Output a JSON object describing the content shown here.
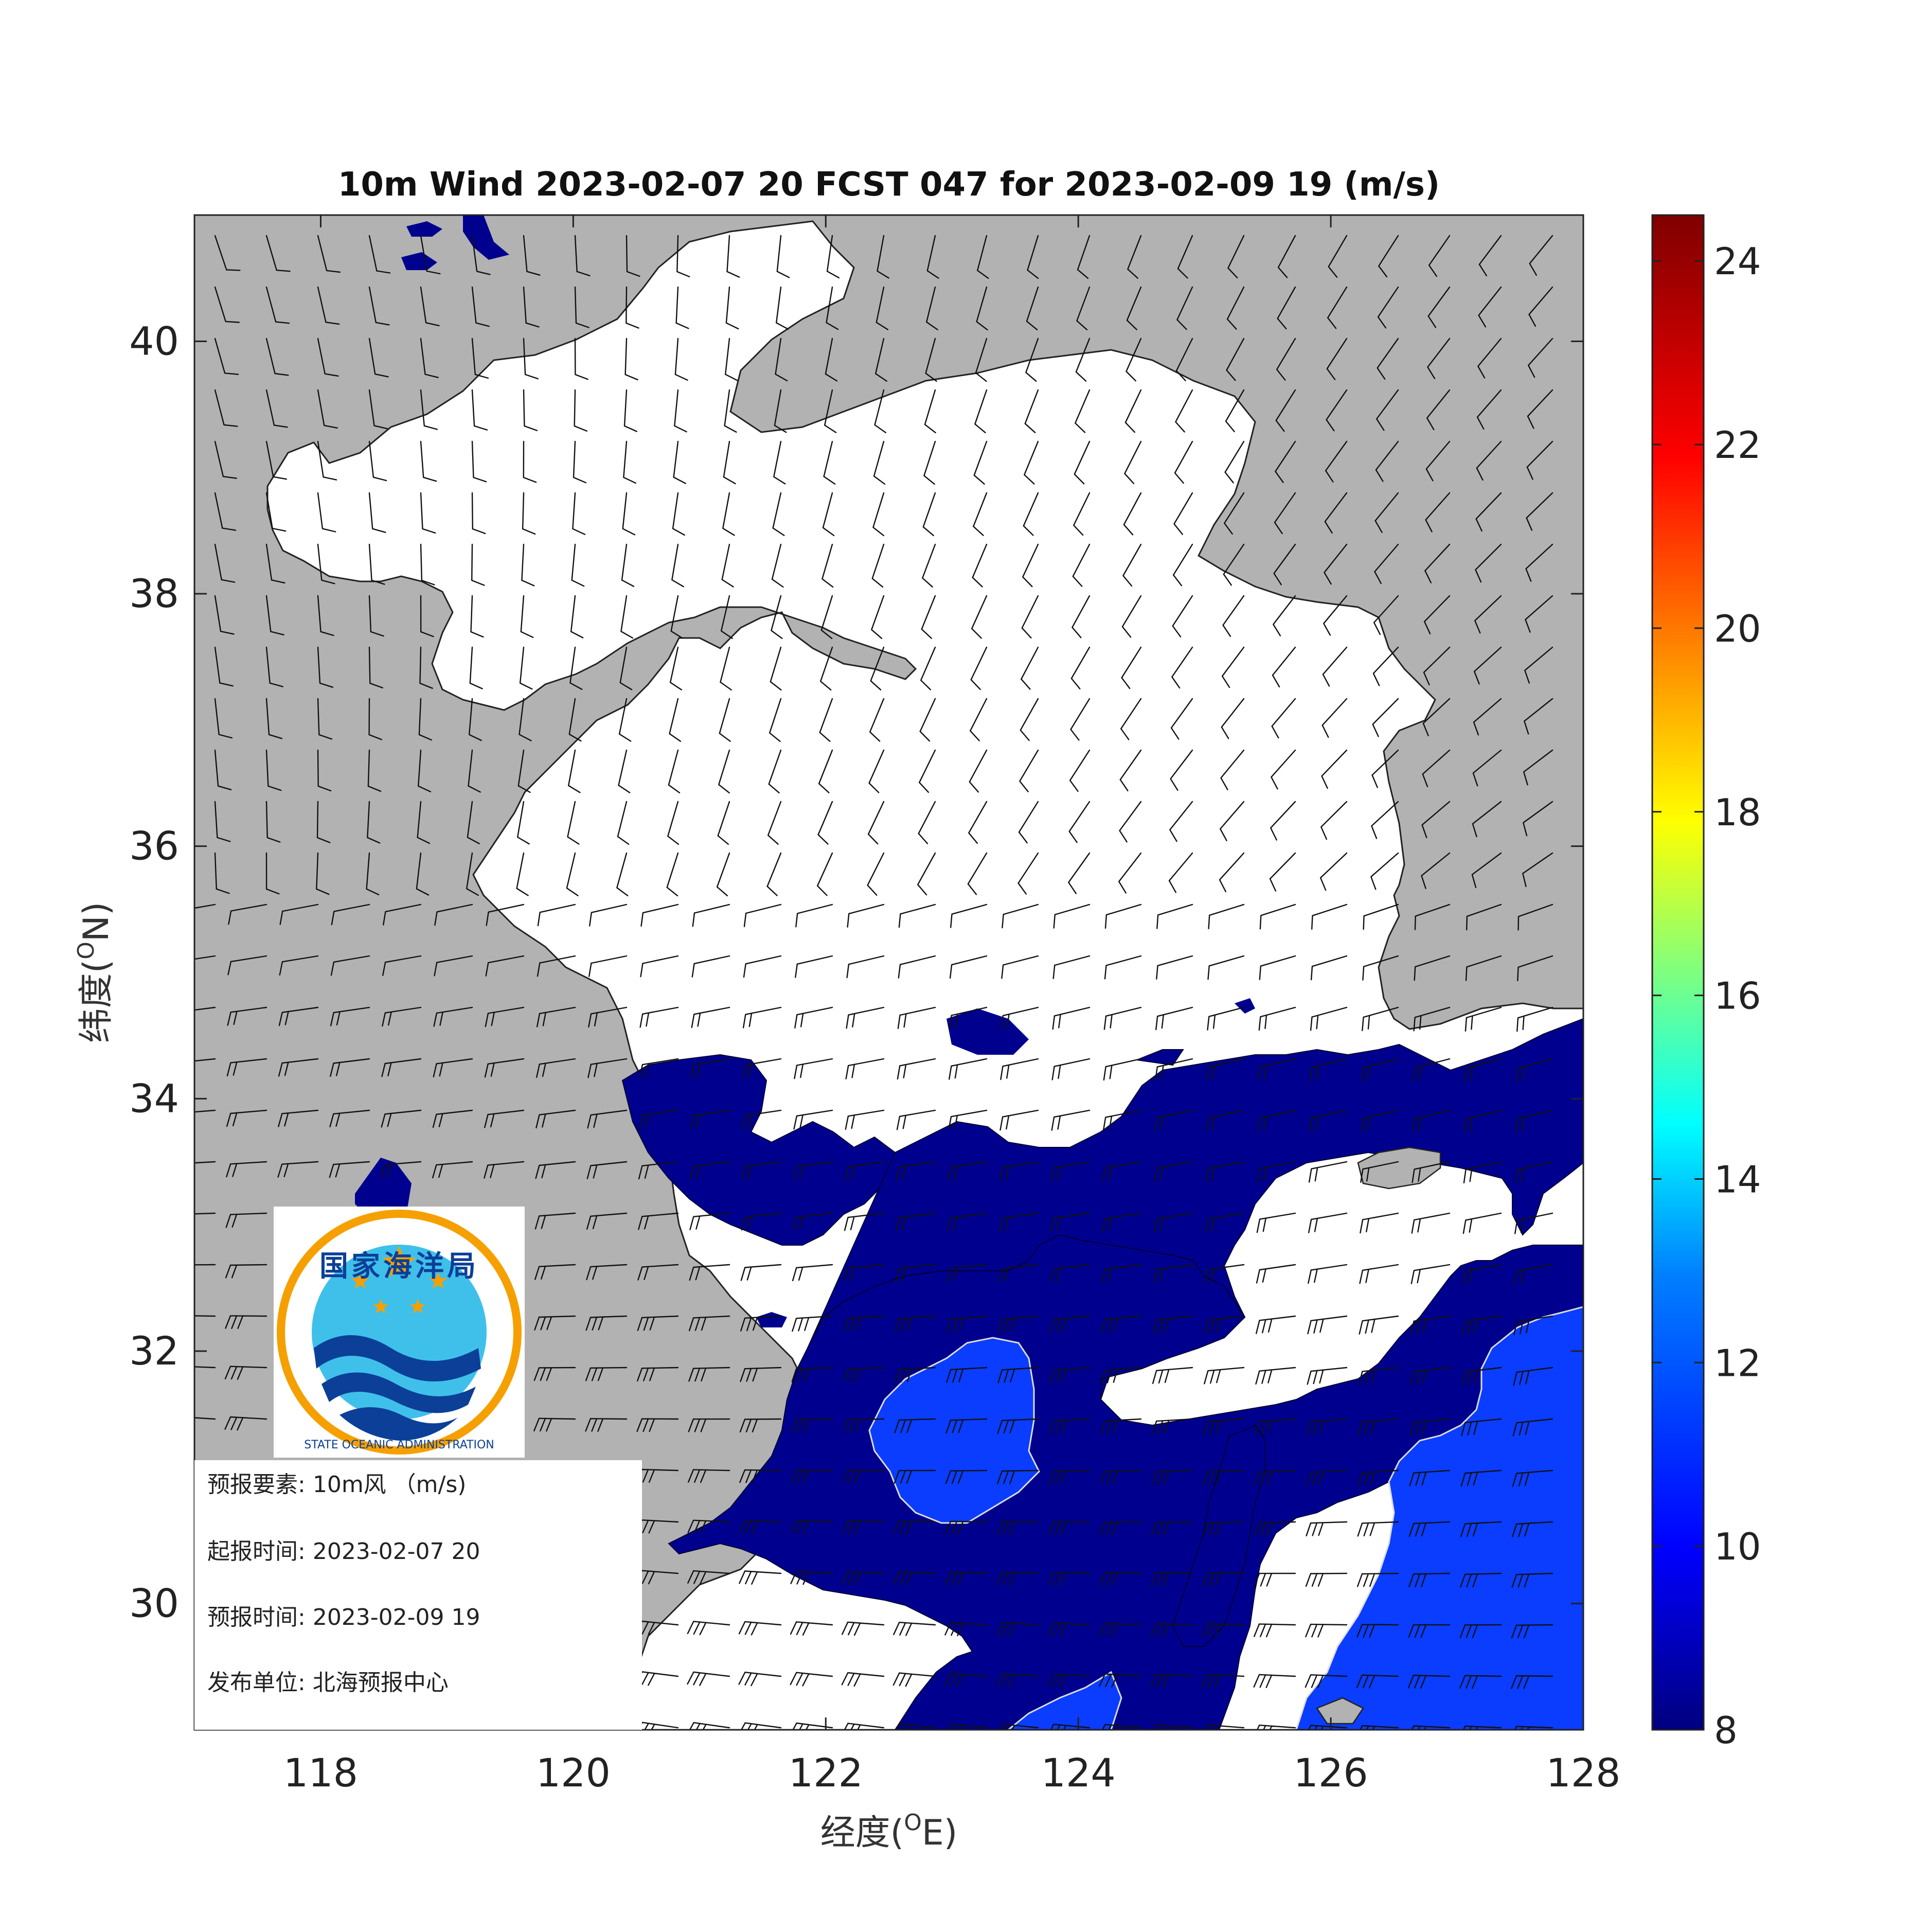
{
  "title": "10m Wind 2023-02-07 20 FCST 047 for 2023-02-09 19 (m/s)",
  "map": {
    "xlabel": "经度(°E)",
    "ylabel": "纬度(°N)",
    "xlabel_parts": [
      "经度(",
      "O",
      "E)"
    ],
    "ylabel_parts": [
      "纬度(",
      "O",
      "N)"
    ],
    "x_range": [
      117,
      128
    ],
    "y_range": [
      29,
      41
    ],
    "x_ticks": [
      "118",
      "120",
      "122",
      "124",
      "126",
      "128"
    ],
    "x_tick_values": [
      118,
      120,
      122,
      124,
      126,
      128
    ],
    "y_ticks": [
      "30",
      "32",
      "34",
      "36",
      "38",
      "40"
    ],
    "y_tick_values": [
      30,
      32,
      34,
      36,
      38,
      40
    ],
    "land_color": "#b2b2b2",
    "sea_color": "#ffffff"
  },
  "colorbar": {
    "range": [
      8,
      24.5
    ],
    "ticks": [
      "8",
      "10",
      "12",
      "14",
      "16",
      "18",
      "20",
      "22",
      "24"
    ],
    "tick_values": [
      8,
      10,
      12,
      14,
      16,
      18,
      20,
      22,
      24
    ],
    "colormap": "jet",
    "colors": [
      "#00007f",
      "#0000ff",
      "#007fff",
      "#00ffff",
      "#7fff7f",
      "#ffff00",
      "#ff7f00",
      "#ff0000",
      "#7f0000"
    ]
  },
  "logo": {
    "name_cn": "国家海洋局",
    "name_en": "STATE OCEANIC ADMINISTRATION",
    "ring_color": "#f5a000",
    "sky_color": "#3fc0ea",
    "wave_color": "#0b3f98",
    "star_color": "#f5a000"
  },
  "info": {
    "element_label": "预报要素:",
    "element_value": "10m风 （m/s)",
    "init_label": "起报时间:",
    "init_value": "2023-02-07 20",
    "valid_label": "预报时间:",
    "valid_value": "2023-02-09 19",
    "issuer_label": "发布单位:",
    "issuer_value": "北海预报中心"
  }
}
